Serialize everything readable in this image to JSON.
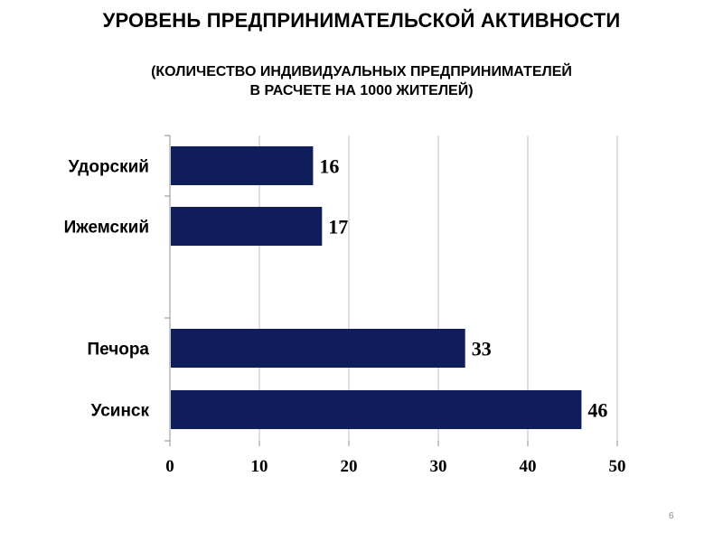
{
  "title": "УРОВЕНЬ ПРЕДПРИНИМАТЕЛЬСКОЙ АКТИВНОСТИ",
  "subtitle_lines": [
    "(КОЛИЧЕСТВО ИНДИВИДУАЛЬНЫХ ПРЕДПРИНИМАТЕЛЕЙ",
    "В РАСЧЕТЕ НА 1000 ЖИТЕЛЕЙ)"
  ],
  "page_number": "6",
  "chart_data": {
    "type": "bar",
    "orientation": "horizontal",
    "groups": [
      {
        "categories": [
          "Удорский",
          "Ижемский"
        ],
        "values": [
          16,
          17
        ]
      },
      {
        "categories": [
          "Печора",
          "Усинск"
        ],
        "values": [
          33,
          46
        ]
      }
    ],
    "xlim": [
      0,
      50
    ],
    "xticks": [
      0,
      10,
      20,
      30,
      40,
      50
    ],
    "grid": true,
    "data_labels": true,
    "bar_color": "#0f1e5a",
    "grid_color": "#bfbfbf"
  }
}
